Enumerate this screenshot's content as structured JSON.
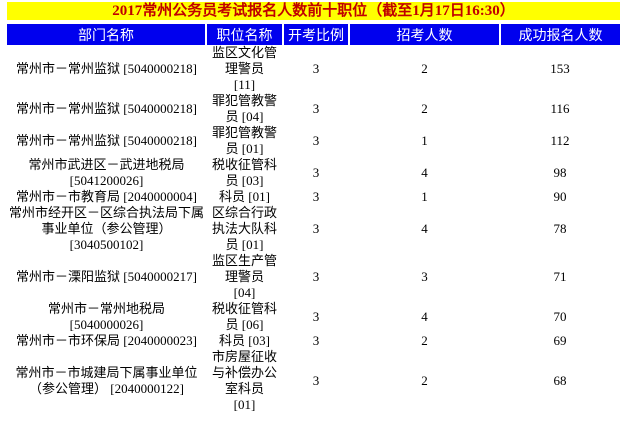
{
  "title": "2017常州公务员考试报名人数前十职位（截至1月17日16:30）",
  "colors": {
    "title_bg": "#ffff00",
    "title_text": "#c00000",
    "header_bg": "#0000ee",
    "header_text": "#ffffff"
  },
  "table": {
    "columns": [
      "部门名称",
      "职位名称",
      "开考比例",
      "招考人数",
      "成功报名人数"
    ],
    "rows": [
      {
        "department": "常州市－常州监狱 [5040000218]",
        "position": "监区文化管\n理警员\n[11]",
        "ratio": "3",
        "recruits": "2",
        "applicants": "153"
      },
      {
        "department": "常州市－常州监狱 [5040000218]",
        "position": "罪犯管教警\n员 [04]",
        "ratio": "3",
        "recruits": "2",
        "applicants": "116"
      },
      {
        "department": "常州市－常州监狱 [5040000218]",
        "position": "罪犯管教警\n员 [01]",
        "ratio": "3",
        "recruits": "1",
        "applicants": "112"
      },
      {
        "department": "常州市武进区－武进地税局\n[5041200026]",
        "position": "税收征管科\n员 [03]",
        "ratio": "3",
        "recruits": "4",
        "applicants": "98"
      },
      {
        "department": "常州市－市教育局 [2040000004]",
        "position": "科员 [01]",
        "ratio": "3",
        "recruits": "1",
        "applicants": "90"
      },
      {
        "department": "常州市经开区－区综合执法局下属\n事业单位（参公管理）\n[3040500102]",
        "position": "区综合行政\n执法大队科\n员 [01]",
        "ratio": "3",
        "recruits": "4",
        "applicants": "78"
      },
      {
        "department": "常州市－溧阳监狱 [5040000217]",
        "position": "监区生产管\n理警员\n[04]",
        "ratio": "3",
        "recruits": "3",
        "applicants": "71"
      },
      {
        "department": "常州市－常州地税局\n[5040000026]",
        "position": "税收征管科\n员 [06]",
        "ratio": "3",
        "recruits": "4",
        "applicants": "70"
      },
      {
        "department": "常州市－市环保局 [2040000023]",
        "position": "科员 [03]",
        "ratio": "3",
        "recruits": "2",
        "applicants": "69"
      },
      {
        "department": "常州市－市城建局下属事业单位\n（参公管理） [2040000122]",
        "position": "市房屋征收\n与补偿办公\n室科员\n[01]",
        "ratio": "3",
        "recruits": "2",
        "applicants": "68"
      }
    ]
  }
}
